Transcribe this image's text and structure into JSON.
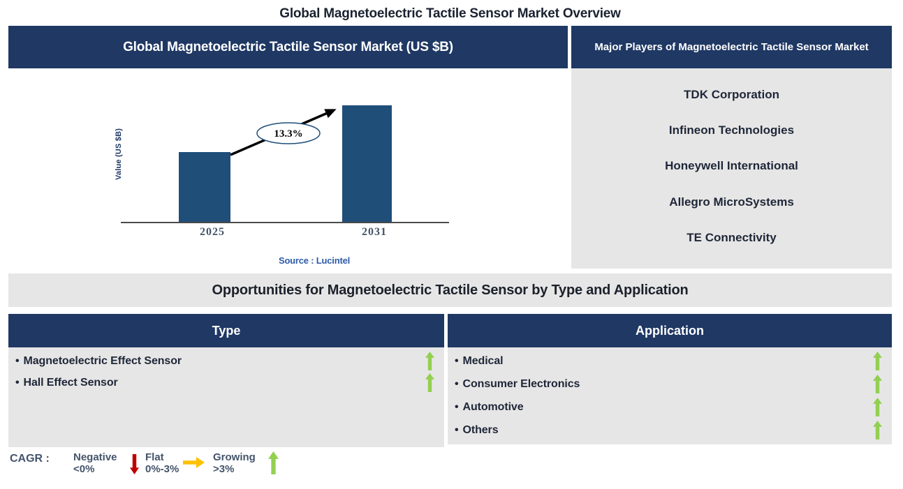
{
  "page_title": "Global Magnetoelectric Tactile Sensor Market Overview",
  "bullet": "•",
  "market_chart": {
    "header": "Global Magnetoelectric Tactile Sensor Market (US $B)"
  },
  "chart_data": {
    "type": "bar",
    "title": "Global Magnetoelectric Tactile Sensor Market (US $B)",
    "categories": [
      "2025",
      "2031"
    ],
    "values_relative": [
      0.6,
      1.0
    ],
    "value_labels_shown": false,
    "annotation": "13.3%",
    "ylabel": "Value (US $B)",
    "xlabel": "",
    "source": "Source : Lucintel",
    "grid": false,
    "legend_position": "none",
    "bar_color": "#1F4E79"
  },
  "major_players": {
    "header": "Major Players of Magnetoelectric Tactile Sensor Market",
    "companies": [
      "TDK Corporation",
      "Infineon Technologies",
      "Honeywell International",
      "Allegro MicroSystems",
      "TE Connectivity"
    ]
  },
  "opportunities": {
    "header": "Opportunities for Magnetoelectric Tactile Sensor by Type and Application"
  },
  "type_panel": {
    "header": "Type",
    "items": [
      {
        "label": "Magnetoelectric Effect Sensor",
        "trend": "growing"
      },
      {
        "label": "Hall Effect Sensor",
        "trend": "growing"
      }
    ]
  },
  "application_panel": {
    "header": "Application",
    "items": [
      {
        "label": "Medical",
        "trend": "growing"
      },
      {
        "label": "Consumer Electronics",
        "trend": "growing"
      },
      {
        "label": "Automotive",
        "trend": "growing"
      },
      {
        "label": "Others",
        "trend": "growing"
      }
    ]
  },
  "legend": {
    "title": "CAGR :",
    "entries": [
      {
        "label": "Negative",
        "range": "<0%",
        "direction": "down",
        "color": "#C00000"
      },
      {
        "label": "Flat",
        "range": "0%-3%",
        "direction": "right",
        "color": "#FFC000"
      },
      {
        "label": "Growing",
        "range": ">3%",
        "direction": "up",
        "color": "#92D050"
      }
    ]
  },
  "colors": {
    "header_navy": "#1F3864",
    "bar_blue": "#1F4E79",
    "panel_gray": "#E7E6E6",
    "growing_green": "#92D050",
    "negative_red": "#C00000",
    "flat_orange": "#FFC000",
    "source_blue": "#2E5BA8",
    "axis_text": "#44546A"
  }
}
